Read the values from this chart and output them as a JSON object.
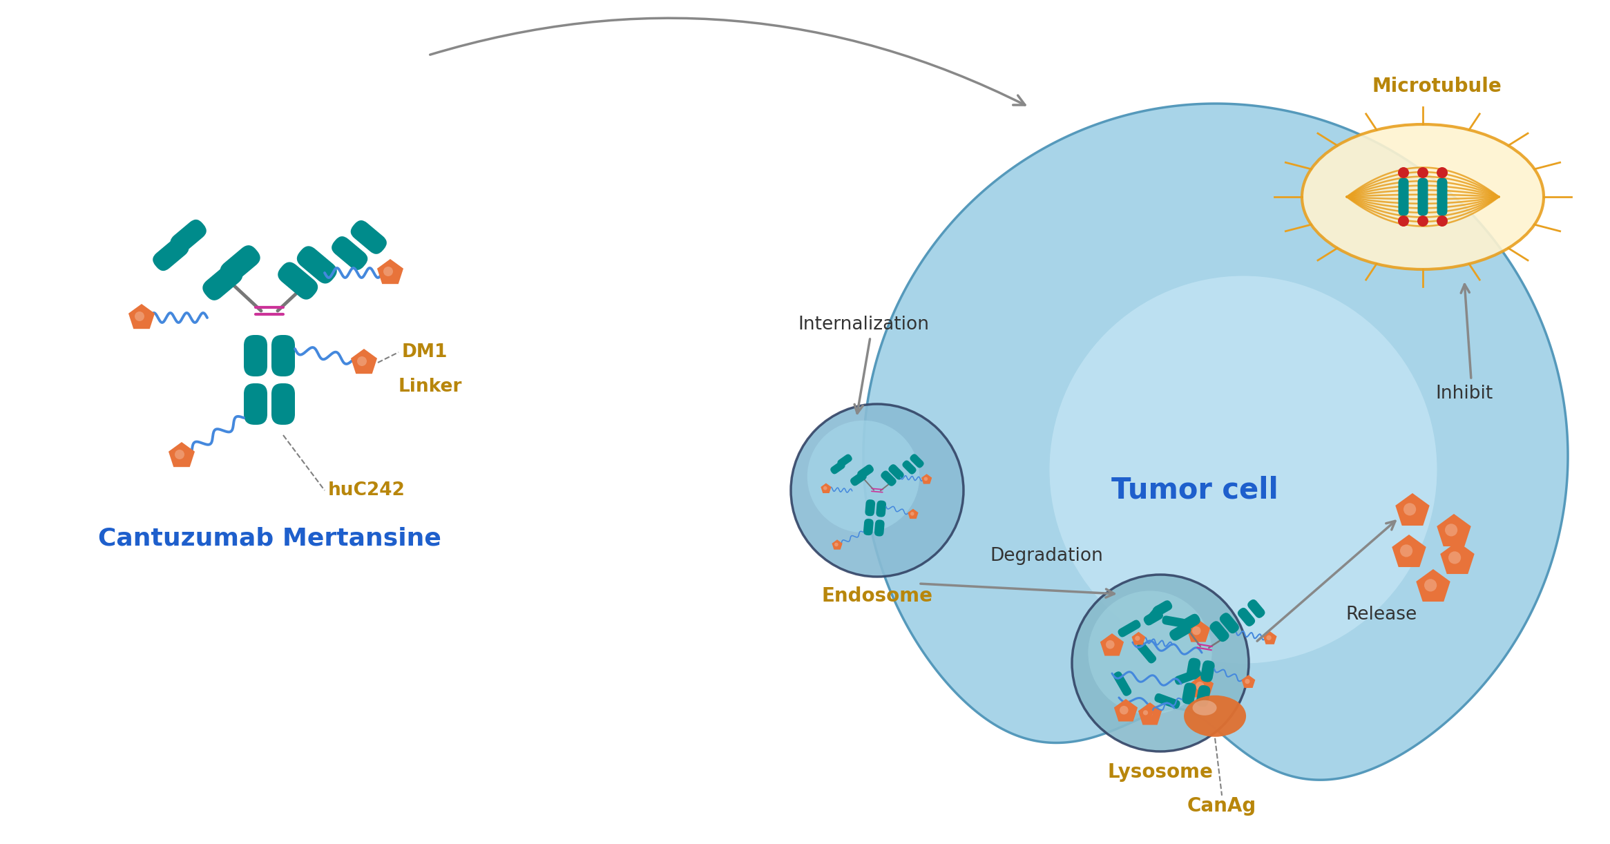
{
  "bg_color": "#ffffff",
  "teal_color": "#008B8B",
  "orange_color": "#E8733A",
  "blue_linker_color": "#4488DD",
  "magenta_color": "#CC3399",
  "gold_color": "#B8860B",
  "cell_fill": "#A8D4E8",
  "cell_fill_light": "#C8E8F4",
  "cell_stroke": "#5599BB",
  "gray_arrow": "#888888",
  "endosome_fill": "#90BFD8",
  "lysosome_fill": "#90BFD8",
  "blue_text": "#1E5FCC",
  "gold_text": "#B8860B",
  "dark_text": "#333333",
  "red_dot": "#CC2222",
  "mt_gold": "#E8A020",
  "cantuzumab_label": "Cantuzumab Mertansine",
  "tumor_cell_label": "Tumor cell",
  "internalization_label": "Internalization",
  "canag_label": "CanAg",
  "endosome_label": "Endosome",
  "degradation_label": "Degradation",
  "lysosome_label": "Lysosome",
  "release_label": "Release",
  "inhibit_label": "Inhibit",
  "microtubule_label": "Microtubule",
  "dm1_label": "DM1",
  "linker_label": "Linker",
  "huc242_label": "huC242"
}
